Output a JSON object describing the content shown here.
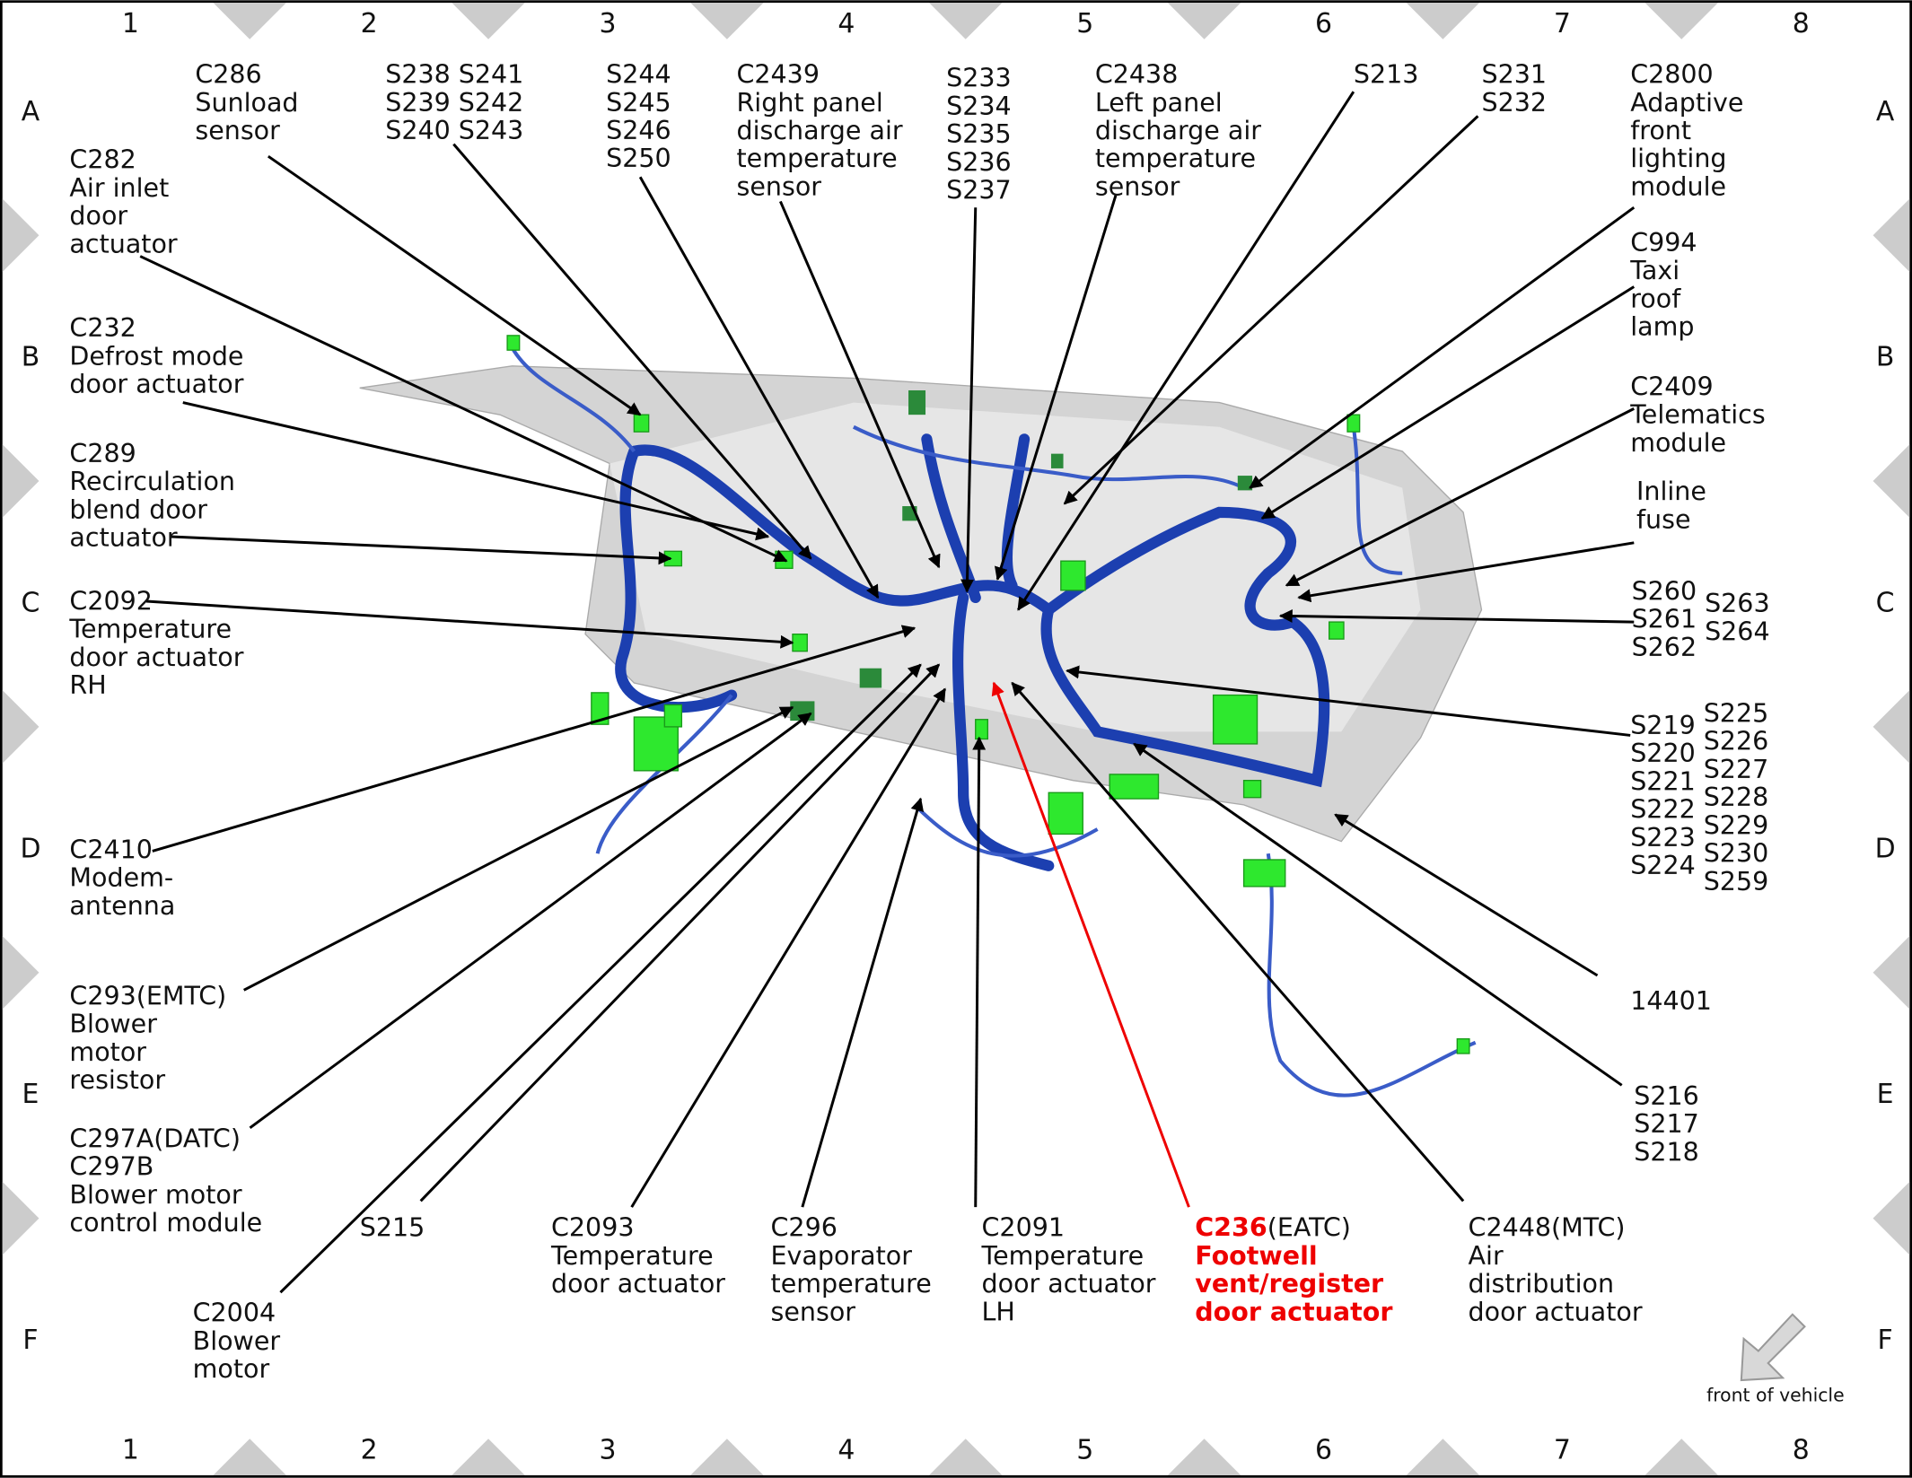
{
  "grid": {
    "columns": [
      "1",
      "2",
      "3",
      "4",
      "5",
      "6",
      "7",
      "8"
    ],
    "rows": [
      "A",
      "B",
      "C",
      "D",
      "E",
      "F"
    ]
  },
  "callouts": [
    {
      "lines": [
        "C286",
        "Sunload",
        "sensor"
      ]
    },
    {
      "lines": [
        "S238",
        "S239",
        "S240"
      ],
      "columns2": [
        "S241",
        "S242",
        "S243"
      ]
    },
    {
      "lines": [
        "S244",
        "S245",
        "S246",
        "S250"
      ]
    },
    {
      "lines": [
        "C2439",
        "Right panel",
        "discharge air",
        "temperature",
        "sensor"
      ]
    },
    {
      "lines": [
        "S233",
        "S234",
        "S235",
        "S236",
        "S237"
      ]
    },
    {
      "lines": [
        "C2438",
        "Left panel",
        "discharge air",
        "temperature",
        "sensor"
      ]
    },
    {
      "lines": [
        "S213"
      ]
    },
    {
      "lines": [
        "S231",
        "S232"
      ]
    },
    {
      "lines": [
        "C2800",
        "Adaptive",
        "front",
        "lighting",
        "module"
      ]
    },
    {
      "lines": [
        "C994",
        "Taxi",
        "roof",
        "lamp"
      ]
    },
    {
      "lines": [
        "C2409",
        "Telematics",
        "module"
      ]
    },
    {
      "lines": [
        "Inline",
        "fuse"
      ]
    },
    {
      "lines": [
        "S260",
        "S261",
        "S262"
      ],
      "columns2": [
        "S263",
        "S264"
      ]
    },
    {
      "lines": [
        "S219",
        "S220",
        "S221",
        "S222",
        "S223",
        "S224"
      ],
      "columns2": [
        "S225",
        "S226",
        "S227",
        "S228",
        "S229",
        "S230",
        "S259"
      ]
    },
    {
      "lines": [
        "14401"
      ]
    },
    {
      "lines": [
        "S216",
        "S217",
        "S218"
      ]
    },
    {
      "lines": [
        "C2448",
        "Air",
        "distribution",
        "door actuator"
      ],
      "qualifier": "(MTC)"
    },
    {
      "lines": [
        "C236",
        "Footwell",
        "vent/register",
        "door actuator"
      ],
      "qualifier": "(EATC)",
      "highlight": true
    },
    {
      "lines": [
        "C2091",
        "Temperature",
        "door actuator",
        "LH"
      ]
    },
    {
      "lines": [
        "C296",
        "Evaporator",
        "temperature",
        "sensor"
      ]
    },
    {
      "lines": [
        "C2093",
        "Temperature",
        "door actuator"
      ]
    },
    {
      "lines": [
        "S215"
      ]
    },
    {
      "lines": [
        "C2004",
        "Blower",
        "motor"
      ]
    },
    {
      "lines": [
        "C297A",
        "C297B",
        "Blower motor",
        "control module"
      ],
      "qualifier": "(DATC)"
    },
    {
      "lines": [
        "C293",
        "Blower",
        "motor",
        "resistor"
      ],
      "qualifier": "(EMTC)"
    },
    {
      "lines": [
        "C2410",
        "Modem-",
        "antenna"
      ]
    },
    {
      "lines": [
        "C2092",
        "Temperature",
        "door actuator",
        "RH"
      ]
    },
    {
      "lines": [
        "C289",
        "Recirculation",
        "blend door",
        "actuator"
      ]
    },
    {
      "lines": [
        "C232",
        "Defrost mode",
        "door actuator"
      ]
    },
    {
      "lines": [
        "C282",
        "Air inlet",
        "door",
        "actuator"
      ]
    }
  ],
  "orientation": "front of vehicle"
}
